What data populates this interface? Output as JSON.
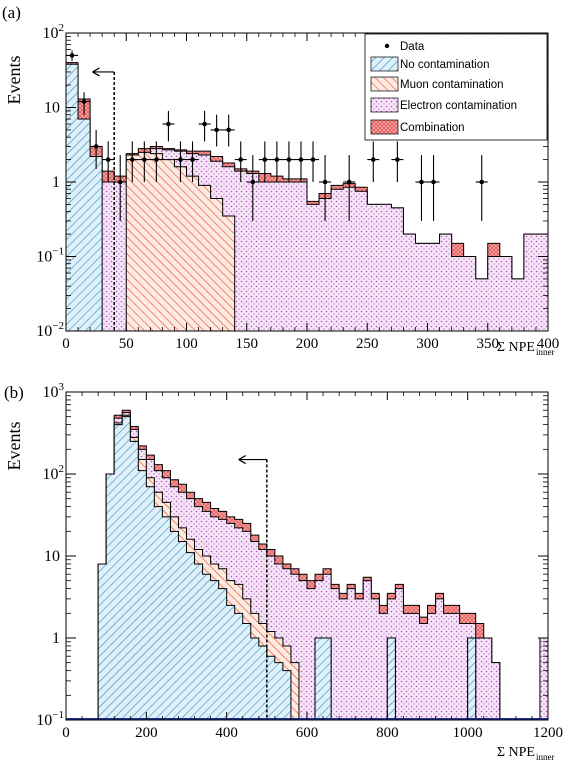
{
  "colors": {
    "axis": "#000000",
    "no_contamination": "#2f8ec4",
    "no_contamination_fill": "#dff0f8",
    "muon": "#e8572a",
    "muon_fill": "#fdebe3",
    "electron": "#b34fc4",
    "electron_fill": "#f6e6f7",
    "combination": "#e23b3b",
    "combination_fill": "#f6a7a7",
    "baseline_b": "#1f2f8f"
  },
  "chart_data": [
    {
      "panel_label": "(a)",
      "type": "histogram",
      "xlabel": "Σ NPE",
      "xlabel_sub": "inner",
      "ylabel": "Events",
      "xlim": [
        0,
        400
      ],
      "ylim": [
        0.01,
        100
      ],
      "log_y": true,
      "grid": false,
      "bin_width": 10,
      "x_ticks": [
        0,
        50,
        100,
        150,
        200,
        250,
        300,
        350,
        400
      ],
      "x_tick_labels": [
        "0",
        "50",
        "100",
        "150",
        "200",
        "250",
        "300",
        "350",
        "400"
      ],
      "y_ticks": [
        0.01,
        0.1,
        1,
        10,
        100
      ],
      "y_tick_labels": [
        {
          "base": "10",
          "exp": "−2"
        },
        {
          "base": "10",
          "exp": "−1"
        },
        {
          "base": "1",
          "exp": ""
        },
        {
          "base": "10",
          "exp": ""
        },
        {
          "base": "10",
          "exp": "2"
        }
      ],
      "legend_position": "top-right",
      "legend": [
        {
          "key": "data",
          "label": "Data"
        },
        {
          "key": "no_contamination",
          "label": "No contamination"
        },
        {
          "key": "muon",
          "label": "Muon contamination"
        },
        {
          "key": "electron",
          "label": "Electron contamination"
        },
        {
          "key": "combination",
          "label": "Combination"
        }
      ],
      "cut": {
        "x": 40,
        "y_top": 30,
        "y_bottom": 0.01,
        "arrow_to": 22
      },
      "bin_edges_start": 0,
      "series": [
        {
          "key": "no_contamination",
          "name": "No contamination",
          "values": [
            38,
            7,
            2.2,
            0.01,
            0.01,
            0.01,
            0.01,
            0.01,
            0.01,
            0.01,
            0.01,
            0.01,
            0.01,
            0.01,
            0.01,
            0.01,
            0.01,
            0.01,
            0.01,
            0.01,
            0.01,
            0.01,
            0.01,
            0.01,
            0.01,
            0.01,
            0.01,
            0.01,
            0.01,
            0.01,
            0.01,
            0.01,
            0.01,
            0.01,
            0.01,
            0.01,
            0.01,
            0.01,
            0.01,
            0.01
          ]
        },
        {
          "key": "muon",
          "name": "Muon contamination",
          "values": [
            0.01,
            0.01,
            0.01,
            0.01,
            0.01,
            2.3,
            2.5,
            2.4,
            2.0,
            1.6,
            1.2,
            0.9,
            0.6,
            0.35,
            0.01,
            0.01,
            0.01,
            0.01,
            0.01,
            0.01,
            0.01,
            0.01,
            0.01,
            0.01,
            0.01,
            0.01,
            0.01,
            0.01,
            0.01,
            0.01,
            0.01,
            0.01,
            0.01,
            0.01,
            0.01,
            0.01,
            0.01,
            0.01,
            0.01,
            0.01
          ]
        },
        {
          "key": "electron",
          "name": "Electron contamination",
          "values": [
            0.01,
            1.5,
            1.0,
            1.0,
            1.0,
            0.9,
            2.0,
            2.8,
            2.7,
            2.6,
            2.4,
            2.3,
            1.9,
            1.6,
            1.4,
            1.3,
            1.0,
            1.0,
            1.0,
            1.0,
            0.5,
            0.6,
            0.8,
            0.85,
            0.75,
            0.5,
            0.5,
            0.45,
            0.2,
            0.15,
            0.15,
            0.2,
            0.1,
            0.1,
            0.05,
            0.1,
            0.1,
            0.05,
            0.2,
            0.2
          ]
        },
        {
          "key": "combination",
          "name": "Combination",
          "values": [
            40,
            13,
            3.0,
            1.4,
            1.2,
            2.4,
            2.8,
            3.0,
            2.8,
            2.7,
            2.6,
            2.6,
            2.2,
            1.8,
            1.5,
            1.4,
            1.3,
            1.2,
            1.1,
            1.1,
            0.55,
            0.7,
            0.9,
            0.95,
            0.85,
            0.5,
            0.5,
            0.45,
            0.2,
            0.15,
            0.15,
            0.2,
            0.15,
            0.1,
            0.05,
            0.15,
            0.1,
            0.05,
            0.2,
            0.2
          ]
        }
      ],
      "data_points": [
        {
          "x": 5,
          "y": 50,
          "lo": 42,
          "hi": 58
        },
        {
          "x": 15,
          "y": 12,
          "lo": 8,
          "hi": 16
        },
        {
          "x": 25,
          "y": 3,
          "lo": 1.5,
          "hi": 5
        },
        {
          "x": 35,
          "y": 2,
          "lo": 1,
          "hi": 3.5
        },
        {
          "x": 45,
          "y": 1,
          "lo": 0.3,
          "hi": 2.3
        },
        {
          "x": 55,
          "y": 2,
          "lo": 1,
          "hi": 3.5
        },
        {
          "x": 65,
          "y": 2,
          "lo": 1,
          "hi": 3.5
        },
        {
          "x": 75,
          "y": 2,
          "lo": 1,
          "hi": 3.5
        },
        {
          "x": 85,
          "y": 6,
          "lo": 3.5,
          "hi": 9
        },
        {
          "x": 95,
          "y": 2,
          "lo": 1,
          "hi": 3.5
        },
        {
          "x": 105,
          "y": 2,
          "lo": 1,
          "hi": 3.5
        },
        {
          "x": 115,
          "y": 6,
          "lo": 3.5,
          "hi": 9
        },
        {
          "x": 125,
          "y": 5,
          "lo": 3,
          "hi": 8
        },
        {
          "x": 135,
          "y": 5,
          "lo": 3,
          "hi": 8
        },
        {
          "x": 145,
          "y": 2,
          "lo": 1,
          "hi": 3.5
        },
        {
          "x": 155,
          "y": 1,
          "lo": 0.3,
          "hi": 2.3
        },
        {
          "x": 165,
          "y": 2,
          "lo": 1,
          "hi": 3.5
        },
        {
          "x": 175,
          "y": 2,
          "lo": 1,
          "hi": 3.5
        },
        {
          "x": 185,
          "y": 2,
          "lo": 1,
          "hi": 3.5
        },
        {
          "x": 195,
          "y": 2,
          "lo": 1,
          "hi": 3.5
        },
        {
          "x": 205,
          "y": 2,
          "lo": 1,
          "hi": 3.5
        },
        {
          "x": 215,
          "y": 1,
          "lo": 0.3,
          "hi": 2.3
        },
        {
          "x": 235,
          "y": 1,
          "lo": 0.3,
          "hi": 2.3
        },
        {
          "x": 255,
          "y": 2,
          "lo": 1,
          "hi": 3.5
        },
        {
          "x": 275,
          "y": 2,
          "lo": 1,
          "hi": 3.5
        },
        {
          "x": 295,
          "y": 1,
          "lo": 0.3,
          "hi": 2.3
        },
        {
          "x": 305,
          "y": 1,
          "lo": 0.3,
          "hi": 2.3
        },
        {
          "x": 345,
          "y": 1,
          "lo": 0.3,
          "hi": 2.3
        }
      ]
    },
    {
      "panel_label": "(b)",
      "type": "histogram",
      "xlabel": "Σ NPE",
      "xlabel_sub": "inner",
      "ylabel": "Events",
      "xlim": [
        0,
        1200
      ],
      "ylim": [
        0.1,
        1000
      ],
      "log_y": true,
      "grid": false,
      "bin_width": 20,
      "x_ticks": [
        0,
        200,
        400,
        600,
        800,
        1000,
        1200
      ],
      "x_tick_labels": [
        "0",
        "200",
        "400",
        "600",
        "800",
        "1000",
        "1200"
      ],
      "y_ticks": [
        0.1,
        1,
        10,
        100,
        1000
      ],
      "y_tick_labels": [
        {
          "base": "10",
          "exp": "−1"
        },
        {
          "base": "1",
          "exp": ""
        },
        {
          "base": "10",
          "exp": ""
        },
        {
          "base": "10",
          "exp": "2"
        },
        {
          "base": "10",
          "exp": "3"
        }
      ],
      "cut": {
        "x": 500,
        "y_top": 150,
        "y_bottom": 0.1,
        "arrow_to": 430
      },
      "bin_edges_start": 0,
      "series": [
        {
          "key": "no_contamination",
          "name": "No contamination",
          "values": [
            0.1,
            0.1,
            0.1,
            0.1,
            8,
            100,
            400,
            500,
            250,
            110,
            70,
            40,
            30,
            20,
            15,
            11,
            8,
            6,
            5,
            4,
            2.5,
            2,
            1.5,
            1,
            0.8,
            0.6,
            0.5,
            0.4,
            0.1,
            0.1,
            0.1,
            1,
            1,
            0.1,
            0.1,
            0.1,
            0.1,
            0.1,
            0.1,
            0.1,
            1,
            0.1,
            0.1,
            0.1,
            0.1,
            0.1,
            0.1,
            0.1,
            0.1,
            0.1,
            1,
            0.1,
            0.1,
            0.1,
            0.1,
            0.1,
            0.1,
            0.1,
            0.1,
            0.1
          ]
        },
        {
          "key": "muon",
          "name": "Muon contamination",
          "values": [
            0.1,
            0.1,
            0.1,
            0.1,
            8,
            100,
            420,
            520,
            280,
            150,
            90,
            60,
            45,
            30,
            22,
            16,
            12,
            10,
            8,
            7,
            5,
            4.5,
            3,
            2,
            1.5,
            1.2,
            1,
            0.8,
            0.5,
            0.1,
            0.1,
            1,
            1,
            0.1,
            0.1,
            0.1,
            0.1,
            0.1,
            0.1,
            0.1,
            1,
            0.1,
            0.1,
            0.1,
            0.1,
            0.1,
            0.1,
            0.1,
            0.1,
            0.1,
            1,
            0.1,
            0.1,
            0.1,
            0.1,
            0.1,
            0.1,
            0.1,
            0.1,
            0.1
          ]
        },
        {
          "key": "electron",
          "name": "Electron contamination",
          "values": [
            0.1,
            0.1,
            0.1,
            0.1,
            8,
            100,
            480,
            560,
            350,
            200,
            150,
            110,
            90,
            70,
            60,
            50,
            40,
            35,
            30,
            28,
            25,
            22,
            20,
            15,
            12,
            10,
            8,
            7,
            6,
            5,
            4,
            5,
            6,
            4,
            3,
            4,
            3,
            5,
            3,
            2,
            3,
            4,
            2,
            2,
            1.5,
            2,
            3,
            2,
            2,
            1.5,
            1.5,
            1,
            1,
            0.5,
            0.1,
            0.1,
            0.1,
            0.1,
            0.1,
            1
          ]
        },
        {
          "key": "combination",
          "name": "Combination",
          "values": [
            0.1,
            0.1,
            0.1,
            0.1,
            8,
            100,
            520,
            600,
            380,
            220,
            170,
            130,
            110,
            85,
            75,
            60,
            50,
            45,
            38,
            35,
            30,
            28,
            25,
            18,
            14,
            12,
            10,
            8,
            7,
            6,
            5,
            6,
            7,
            4.5,
            3.5,
            4.5,
            3.5,
            5.5,
            3.5,
            2.5,
            3.5,
            4.5,
            2.5,
            2.5,
            1.8,
            2.5,
            3.5,
            2.5,
            2.5,
            2,
            2,
            1.5,
            1,
            0.5,
            0.1,
            0.1,
            0.1,
            0.1,
            0.1,
            1
          ]
        }
      ]
    }
  ]
}
